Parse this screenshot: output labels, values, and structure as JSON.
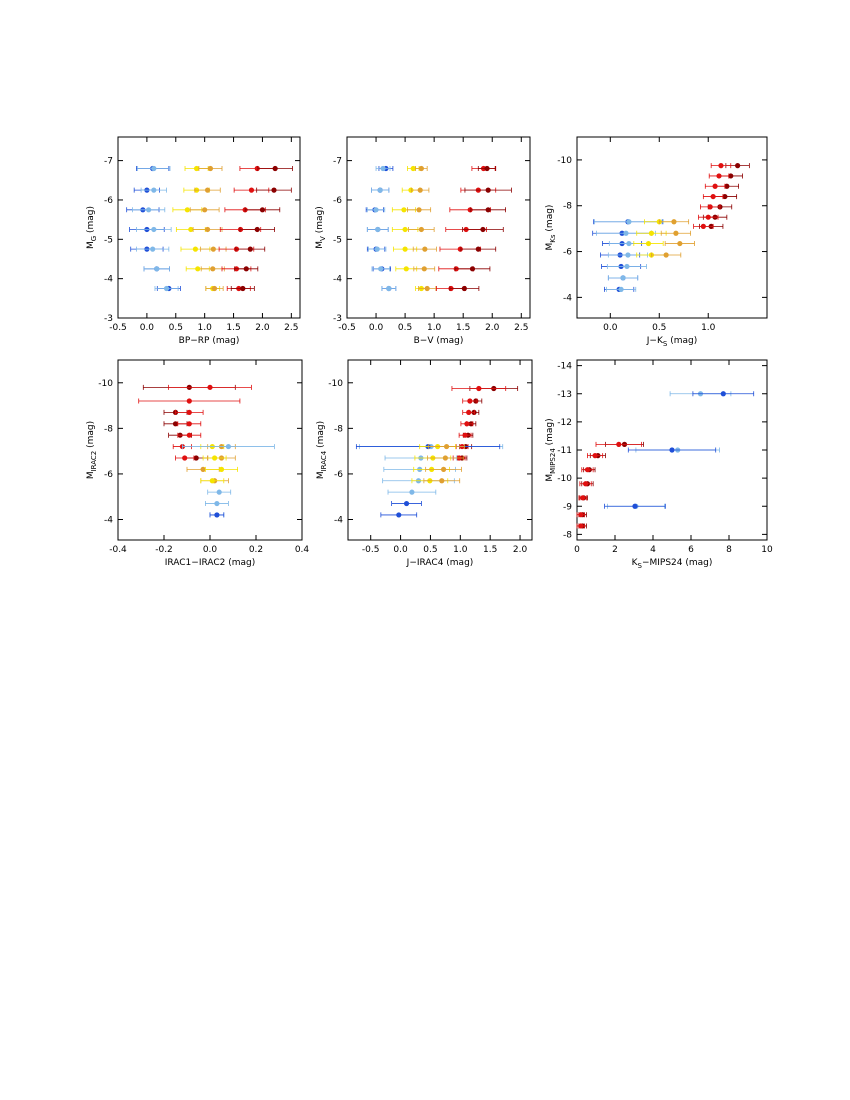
{
  "chart_data": [
    {
      "type": "scatter",
      "xlabel": [
        "BP−RP (mag)"
      ],
      "ylabel": [
        "M",
        "G",
        " (mag)"
      ],
      "xlim": [
        -0.5,
        2.65
      ],
      "ylim": [
        -3,
        -7.6
      ],
      "xticks": [
        -0.5,
        {
          "value": 0,
          "label": "0.0"
        },
        0.5,
        {
          "value": 1,
          "label": "1.0"
        },
        1.5,
        {
          "value": 2,
          "label": "2.0"
        },
        2.5
      ],
      "yticks": [
        -3,
        -4,
        -5,
        -6,
        -7
      ],
      "series": [
        {
          "color": "#1f4fd8",
          "x": [
            0.1,
            0.0,
            -0.07,
            0.0,
            0.0,
            0.17,
            0.38
          ],
          "y": [
            -6.8,
            -6.25,
            -5.75,
            -5.25,
            -4.75,
            -4.25,
            -3.75
          ],
          "xerr": [
            0.28,
            0.22,
            0.28,
            0.3,
            0.28,
            0.22,
            0.2
          ]
        },
        {
          "color": "#7fb8e8",
          "x": [
            0.12,
            0.12,
            0.03,
            0.12,
            0.1,
            0.17,
            0.34
          ],
          "y": [
            -6.8,
            -6.25,
            -5.75,
            -5.25,
            -4.75,
            -4.25,
            -3.75
          ],
          "xerr": [
            0.28,
            0.22,
            0.28,
            0.3,
            0.28,
            0.22,
            0.2
          ]
        },
        {
          "color": "#f5e400",
          "x": [
            0.86,
            0.86,
            0.7,
            0.76,
            0.84,
            0.88,
            1.14
          ],
          "y": [
            -6.8,
            -6.25,
            -5.75,
            -5.25,
            -4.75,
            -4.25,
            -3.75
          ],
          "xerr": [
            0.2,
            0.22,
            0.25,
            0.25,
            0.25,
            0.2,
            0.12
          ]
        },
        {
          "color": "#e0a030",
          "x": [
            1.1,
            1.05,
            1.0,
            1.05,
            1.15,
            1.14,
            1.17
          ],
          "y": [
            -6.8,
            -6.25,
            -5.75,
            -5.25,
            -4.75,
            -4.25,
            -3.75
          ],
          "xerr": [
            0.2,
            0.22,
            0.25,
            0.25,
            0.22,
            0.2,
            0.15
          ]
        },
        {
          "color": "#e01010",
          "x": [
            1.91,
            1.81,
            1.7,
            1.62,
            1.55,
            1.55,
            1.59
          ],
          "y": [
            -6.8,
            -6.25,
            -5.75,
            -5.25,
            -4.75,
            -4.25,
            -3.75
          ],
          "xerr": [
            0.3,
            0.3,
            0.35,
            0.35,
            0.3,
            0.25,
            0.2
          ]
        },
        {
          "color": "#8b0000",
          "x": [
            2.22,
            2.2,
            2.0,
            1.91,
            1.79,
            1.72,
            1.66
          ],
          "y": [
            -6.8,
            -6.25,
            -5.75,
            -5.25,
            -4.75,
            -4.25,
            -3.75
          ],
          "xerr": [
            0.3,
            0.3,
            0.3,
            0.3,
            0.25,
            0.2,
            0.2
          ]
        }
      ]
    },
    {
      "type": "scatter",
      "xlabel": [
        "B−V (mag)"
      ],
      "ylabel": [
        "M",
        "V",
        " (mag)"
      ],
      "xlim": [
        -0.5,
        2.65
      ],
      "ylim": [
        -3,
        -7.6
      ],
      "xticks": [
        -0.5,
        {
          "value": 0,
          "label": "0.0"
        },
        0.5,
        {
          "value": 1,
          "label": "1.0"
        },
        1.5,
        {
          "value": 2,
          "label": "2.0"
        },
        2.5
      ],
      "yticks": [
        -3,
        -4,
        -5,
        -6,
        -7
      ],
      "series": [
        {
          "color": "#1f4fd8",
          "x": [
            0.17,
            0.07,
            -0.02,
            0.03,
            0.0,
            0.1,
            0.22
          ],
          "y": [
            -6.8,
            -6.25,
            -5.75,
            -5.25,
            -4.75,
            -4.25,
            -3.75
          ],
          "xerr": [
            0.12,
            0.15,
            0.15,
            0.18,
            0.15,
            0.15,
            0.12
          ]
        },
        {
          "color": "#7fb8e8",
          "x": [
            0.12,
            0.07,
            0.0,
            0.03,
            0.02,
            0.08,
            0.22
          ],
          "y": [
            -6.8,
            -6.25,
            -5.75,
            -5.25,
            -4.75,
            -4.25,
            -3.75
          ],
          "xerr": [
            0.12,
            0.15,
            0.15,
            0.18,
            0.15,
            0.15,
            0.12
          ]
        },
        {
          "color": "#f5e400",
          "x": [
            0.64,
            0.6,
            0.48,
            0.5,
            0.5,
            0.52,
            0.78
          ],
          "y": [
            -6.8,
            -6.25,
            -5.75,
            -5.25,
            -4.75,
            -4.25,
            -3.75
          ],
          "xerr": [
            0.1,
            0.15,
            0.2,
            0.22,
            0.2,
            0.18,
            0.1
          ]
        },
        {
          "color": "#e0a030",
          "x": [
            0.78,
            0.76,
            0.74,
            0.78,
            0.84,
            0.83,
            0.88
          ],
          "y": [
            -6.8,
            -6.25,
            -5.75,
            -5.25,
            -4.75,
            -4.25,
            -3.75
          ],
          "xerr": [
            0.1,
            0.15,
            0.2,
            0.22,
            0.2,
            0.18,
            0.15
          ]
        },
        {
          "color": "#e01010",
          "x": [
            1.85,
            1.76,
            1.62,
            1.55,
            1.45,
            1.38,
            1.29
          ],
          "y": [
            -6.8,
            -6.25,
            -5.75,
            -5.25,
            -4.75,
            -4.25,
            -3.75
          ],
          "xerr": [
            0.2,
            0.3,
            0.35,
            0.35,
            0.35,
            0.3,
            0.25
          ]
        },
        {
          "color": "#8b0000",
          "x": [
            1.91,
            1.93,
            1.93,
            1.84,
            1.76,
            1.66,
            1.52
          ],
          "y": [
            -6.8,
            -6.25,
            -5.75,
            -5.25,
            -4.75,
            -4.25,
            -3.75
          ],
          "xerr": [
            0.15,
            0.4,
            0.3,
            0.35,
            0.3,
            0.3,
            0.25
          ]
        }
      ]
    },
    {
      "type": "scatter",
      "xlabel": [
        "J−K",
        "S",
        " (mag)"
      ],
      "ylabel": [
        "M",
        "Ks",
        " (mag)"
      ],
      "xlim": [
        -0.34,
        1.6
      ],
      "ylim": [
        -3.1,
        -11
      ],
      "xticks": [
        {
          "value": 0,
          "label": "0.0"
        },
        0.5,
        {
          "value": 1,
          "label": "1.0"
        }
      ],
      "yticks": [
        -4,
        -6,
        -8,
        -10
      ],
      "series": [
        {
          "color": "#1f4fd8",
          "x": [
            0.18,
            0.12,
            0.12,
            0.1,
            0.11,
            0.13,
            0.09
          ],
          "y": [
            -7.3,
            -6.8,
            -6.35,
            -5.85,
            -5.35,
            -4.85,
            -4.35
          ],
          "xerr": [
            0.35,
            0.3,
            0.2,
            0.2,
            0.2,
            0.15,
            0.15
          ]
        },
        {
          "color": "#7fb8e8",
          "x": [
            0.19,
            0.16,
            0.19,
            0.18,
            0.17,
            0.13,
            0.11
          ],
          "y": [
            -7.3,
            -6.8,
            -6.35,
            -5.85,
            -5.35,
            -4.85,
            -4.35
          ],
          "xerr": [
            0.35,
            0.3,
            0.2,
            0.2,
            0.2,
            0.15,
            0.15
          ]
        },
        {
          "color": "#f5e400",
          "x": [
            0.5,
            0.42,
            0.39,
            0.42
          ],
          "y": [
            -7.3,
            -6.8,
            -6.35,
            -5.85
          ],
          "xerr": [
            0.15,
            0.15,
            0.15,
            0.15
          ]
        },
        {
          "color": "#e0a030",
          "x": [
            0.65,
            0.67,
            0.71,
            0.57
          ],
          "y": [
            -7.3,
            -6.8,
            -6.35,
            -5.85
          ],
          "xerr": [
            0.15,
            0.15,
            0.15,
            0.15
          ]
        },
        {
          "color": "#8b0000",
          "x": [
            1.3,
            1.23,
            1.19,
            1.17,
            1.12,
            1.07,
            1.03
          ],
          "y": [
            -9.75,
            -9.3,
            -8.85,
            -8.4,
            -7.95,
            -7.5,
            -7.1
          ],
          "xerr": [
            0.12,
            0.12,
            0.12,
            0.12,
            0.12,
            0.12,
            0.12
          ]
        },
        {
          "color": "#e01010",
          "x": [
            1.13,
            1.11,
            1.07,
            1.05,
            1.02,
            1.0,
            0.95
          ],
          "y": [
            -9.75,
            -9.3,
            -8.85,
            -8.4,
            -7.95,
            -7.5,
            -7.1
          ],
          "xerr": [
            0.1,
            0.1,
            0.1,
            0.1,
            0.1,
            0.1,
            0.1
          ]
        }
      ]
    },
    {
      "type": "scatter",
      "xlabel": [
        "IRAC1−IRAC2 (mag)"
      ],
      "ylabel": [
        "M",
        "IRAC2",
        " (mag)"
      ],
      "xlim": [
        -0.4,
        0.4
      ],
      "ylim": [
        -3.1,
        -11
      ],
      "xticks": [
        -0.4,
        -0.2,
        {
          "value": 0,
          "label": "0.0"
        },
        0.2,
        0.4
      ],
      "yticks": [
        -4,
        -6,
        -8,
        -10
      ],
      "series": [
        {
          "color": "#8b0000",
          "x": [
            -0.09,
            -0.15,
            -0.15,
            -0.13,
            -0.06
          ],
          "y": [
            -9.8,
            -8.7,
            -8.2,
            -7.7,
            -6.7
          ],
          "xerr": [
            0.2,
            0.05,
            0.05,
            0.05,
            0.05
          ]
        },
        {
          "color": "#e01010",
          "x": [
            0.0,
            -0.09,
            -0.09,
            -0.09,
            -0.09,
            -0.12,
            -0.11
          ],
          "y": [
            -9.8,
            -9.2,
            -8.7,
            -8.2,
            -7.7,
            -7.2,
            -6.7
          ],
          "xerr": [
            0.18,
            0.22,
            0.06,
            0.05,
            0.05,
            0.04,
            0.04
          ]
        },
        {
          "color": "#e0a030",
          "x": [
            0.05,
            0.05,
            -0.03,
            0.02
          ],
          "y": [
            -7.2,
            -6.7,
            -6.2,
            -5.7
          ],
          "xerr": [
            0.06,
            0.06,
            0.07,
            0.06
          ]
        },
        {
          "color": "#f5e400",
          "x": [
            0.01,
            0.02,
            0.05,
            0.01
          ],
          "y": [
            -7.2,
            -6.7,
            -6.2,
            -5.7
          ],
          "xerr": [
            0.05,
            0.05,
            0.07,
            0.05
          ]
        },
        {
          "color": "#7fb8e8",
          "x": [
            0.08,
            0.04,
            0.03,
            0.03
          ],
          "y": [
            -7.2,
            -5.2,
            -4.7,
            -4.2
          ],
          "xerr": [
            0.2,
            0.05,
            0.05,
            0.03
          ]
        },
        {
          "color": "#1f4fd8",
          "x": [
            0.03
          ],
          "y": [
            -4.2
          ],
          "xerr": [
            0.03
          ]
        }
      ]
    },
    {
      "type": "scatter",
      "xlabel": [
        "J−IRAC4 (mag)"
      ],
      "ylabel": [
        "M",
        "IRAC4",
        " (mag)"
      ],
      "xlim": [
        -0.88,
        2.2
      ],
      "ylim": [
        -3.1,
        -11
      ],
      "xticks": [
        -0.5,
        {
          "value": 0,
          "label": "0.0"
        },
        0.5,
        {
          "value": 1,
          "label": "1.0"
        },
        1.5,
        {
          "value": 2,
          "label": "2.0"
        }
      ],
      "yticks": [
        -4,
        -6,
        -8,
        -10
      ],
      "series": [
        {
          "color": "#8b0000",
          "x": [
            1.56,
            1.26,
            1.23,
            1.18,
            1.13,
            1.09,
            1.03
          ],
          "y": [
            -9.75,
            -9.2,
            -8.7,
            -8.2,
            -7.7,
            -7.2,
            -6.7
          ],
          "xerr": [
            0.4,
            0.1,
            0.08,
            0.08,
            0.08,
            0.1,
            0.08
          ]
        },
        {
          "color": "#e01010",
          "x": [
            1.31,
            1.16,
            1.14,
            1.11,
            1.08,
            1.03,
            0.98
          ],
          "y": [
            -9.75,
            -9.2,
            -8.7,
            -8.2,
            -7.7,
            -7.2,
            -6.7
          ],
          "xerr": [
            0.45,
            0.12,
            0.1,
            0.1,
            0.1,
            0.1,
            0.1
          ]
        },
        {
          "color": "#7fb8e8",
          "x": [
            0.51,
            0.34,
            0.32,
            0.3,
            0.19
          ],
          "y": [
            -7.2,
            -6.7,
            -6.2,
            -5.7,
            -5.2
          ],
          "xerr": [
            1.2,
            0.6,
            0.6,
            0.6,
            0.4
          ]
        },
        {
          "color": "#1f4fd8",
          "x": [
            0.46,
            0.1,
            -0.03
          ],
          "y": [
            -7.2,
            -4.7,
            -4.2
          ],
          "xerr": [
            1.2,
            0.25,
            0.3
          ]
        },
        {
          "color": "#f5e400",
          "x": [
            0.62,
            0.54,
            0.52,
            0.49
          ],
          "y": [
            -7.2,
            -6.7,
            -6.2,
            -5.7
          ],
          "xerr": [
            0.3,
            0.3,
            0.3,
            0.3
          ]
        },
        {
          "color": "#e0a030",
          "x": [
            0.77,
            0.75,
            0.72,
            0.69
          ],
          "y": [
            -7.2,
            -6.7,
            -6.2,
            -5.7
          ],
          "xerr": [
            0.3,
            0.3,
            0.3,
            0.3
          ]
        }
      ]
    },
    {
      "type": "scatter",
      "xlabel": [
        "K",
        "S",
        "−MIPS24 (mag)"
      ],
      "ylabel": [
        "M",
        "MIPS24",
        " (mag)"
      ],
      "xlim": [
        0,
        10
      ],
      "ylim": [
        -7.8,
        -14.2
      ],
      "xticks": [
        0,
        2,
        4,
        6,
        8,
        10
      ],
      "yticks": [
        -8,
        -9,
        -10,
        -11,
        -12,
        -13,
        -14
      ],
      "series": [
        {
          "color": "#8b0000",
          "x": [
            2.5,
            1.1,
            0.65,
            0.55,
            0.35,
            0.3,
            0.3
          ],
          "y": [
            -11.2,
            -10.8,
            -10.3,
            -9.8,
            -9.3,
            -8.7,
            -8.3
          ],
          "xerr": [
            1.0,
            0.4,
            0.3,
            0.3,
            0.2,
            0.2,
            0.2
          ]
        },
        {
          "color": "#e01010",
          "x": [
            2.2,
            0.95,
            0.55,
            0.45,
            0.3,
            0.2,
            0.2
          ],
          "y": [
            -11.2,
            -10.8,
            -10.3,
            -9.8,
            -9.3,
            -8.7,
            -8.3
          ],
          "xerr": [
            1.2,
            0.4,
            0.3,
            0.3,
            0.2,
            0.2,
            0.2
          ]
        },
        {
          "color": "#7fb8e8",
          "x": [
            6.5,
            5.3,
            3.1
          ],
          "y": [
            -13,
            -11,
            -9
          ],
          "xerr": [
            1.6,
            2.2,
            1.5
          ]
        },
        {
          "color": "#1f4fd8",
          "x": [
            7.7,
            5.0,
            3.05
          ],
          "y": [
            -13,
            -11,
            -9
          ],
          "xerr": [
            1.6,
            2.3,
            1.6
          ]
        }
      ]
    }
  ]
}
